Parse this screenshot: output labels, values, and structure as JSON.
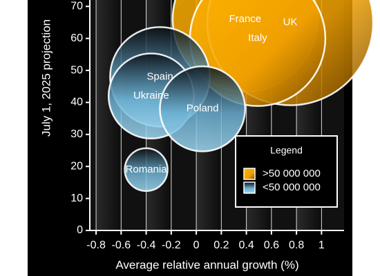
{
  "chart_data": {
    "type": "bubble",
    "xlabel": "Average relative annual growth (%)",
    "ylabel": "July 1, 2025 projection",
    "xlim": [
      -0.85,
      1.18
    ],
    "ylim": [
      0,
      72
    ],
    "xticks": [
      -0.8,
      -0.6,
      -0.4,
      -0.2,
      0,
      0.2,
      0.4,
      0.6,
      0.8,
      1
    ],
    "yticks": [
      0,
      10,
      20,
      30,
      40,
      50,
      60,
      70
    ],
    "grid": true,
    "legend_title": "Legend",
    "legend_position": "lower right",
    "series": [
      {
        "name": ">50 000 000",
        "color": "#f5a300",
        "labels": [
          "France",
          "UK",
          "Italy"
        ],
        "x": [
          0.39,
          0.75,
          0.49
        ],
        "values": [
          66,
          65,
          60
        ],
        "sizes": [
          110,
          144,
          96
        ]
      },
      {
        "name": "<50 000 000",
        "color": "#87ceeb",
        "labels": [
          "Spain",
          "Ukraine",
          "Poland",
          "Romania"
        ],
        "x": [
          -0.29,
          -0.36,
          0.05,
          -0.4
        ],
        "values": [
          48,
          42,
          38,
          19
        ],
        "sizes": [
          52,
          38,
          38,
          9.6
        ]
      }
    ]
  }
}
